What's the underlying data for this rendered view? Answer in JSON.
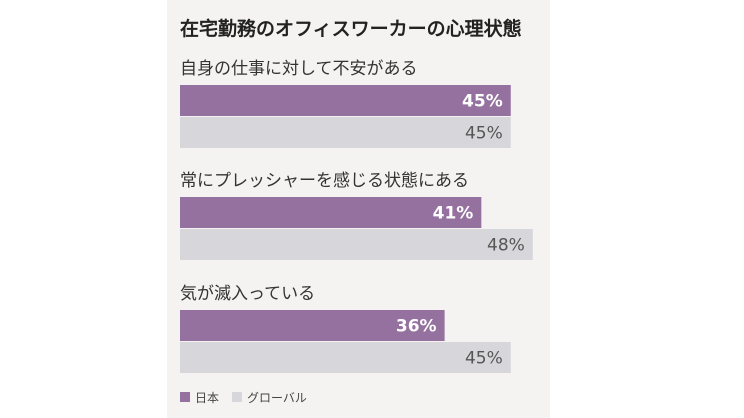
{
  "title": "在宅勤務のオフィスワーカーの心理状態",
  "colors": {
    "panel_bg": "#f4f3f1",
    "japan": "#94719f",
    "global": "#d7d6db"
  },
  "chart_data": {
    "type": "bar",
    "orientation": "horizontal",
    "title": "在宅勤務のオフィスワーカーの心理状態",
    "categories": [
      "自身の仕事に対して不安がある",
      "常にプレッシャーを感じる状態にある",
      "気が滅入っている"
    ],
    "series": [
      {
        "name": "日本",
        "values": [
          45,
          41,
          36
        ],
        "labels": [
          "45%",
          "41%",
          "36%"
        ]
      },
      {
        "name": "グローバル",
        "values": [
          45,
          48,
          45
        ],
        "labels": [
          "45%",
          "48%",
          "45%"
        ]
      }
    ],
    "unit": "%",
    "xlim": [
      0,
      53
    ],
    "grid": false,
    "legend": "bottom-left"
  }
}
